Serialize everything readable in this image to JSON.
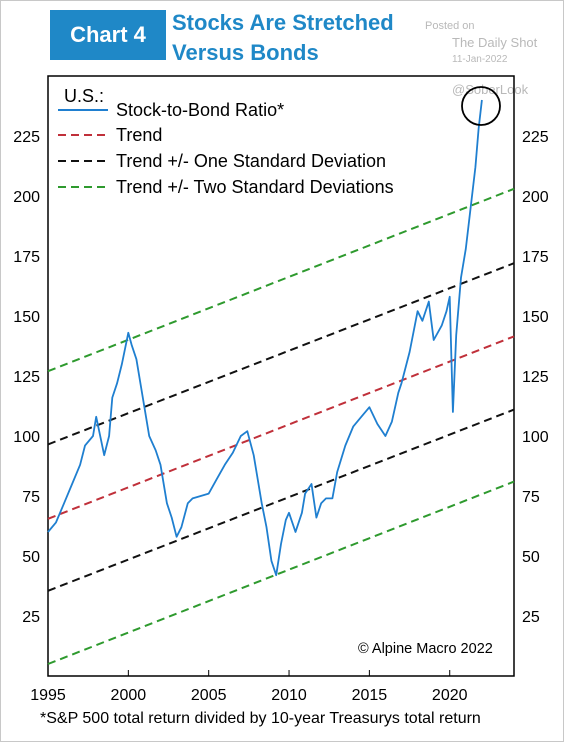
{
  "header": {
    "badge": "Chart 4",
    "title_line1": "Stocks Are Stretched",
    "title_line2": "Versus Bonds"
  },
  "watermark": {
    "posted_on": "Posted on",
    "source": "The Daily Shot",
    "date": "11-Jan-2022",
    "handle": "@SoberLook"
  },
  "footnote": "*S&P 500 total return divided by 10-year Treasurys total return",
  "chart_data": {
    "type": "line",
    "region_label": "U.S.:",
    "credit": "© Alpine Macro 2022",
    "xlim": [
      1995,
      2024
    ],
    "ylim": [
      0,
      250
    ],
    "x_ticks": [
      "1995",
      "2000",
      "2005",
      "2010",
      "2015",
      "2020"
    ],
    "y_ticks": [
      "25",
      "50",
      "75",
      "100",
      "125",
      "150",
      "175",
      "200",
      "225"
    ],
    "legend_position": "top-left",
    "series": [
      {
        "name": "Stock-to-Bond Ratio*",
        "color": "#1f7fd0",
        "style": "solid",
        "x": [
          1995,
          1995.5,
          1996,
          1996.5,
          1997,
          1997.3,
          1997.8,
          1998,
          1998.5,
          1998.8,
          1999,
          1999.3,
          1999.6,
          2000,
          2000.2,
          2000.5,
          2000.8,
          2001,
          2001.3,
          2001.7,
          2002,
          2002.4,
          2002.7,
          2003,
          2003.3,
          2003.7,
          2004,
          2004.5,
          2005,
          2005.5,
          2006,
          2006.5,
          2007,
          2007.4,
          2007.8,
          2008,
          2008.3,
          2008.6,
          2008.9,
          2009.2,
          2009.5,
          2009.8,
          2010,
          2010.4,
          2010.8,
          2011,
          2011.4,
          2011.7,
          2012,
          2012.3,
          2012.7,
          2013,
          2013.5,
          2014,
          2014.5,
          2015,
          2015.5,
          2016,
          2016.4,
          2016.8,
          2017,
          2017.5,
          2018,
          2018.3,
          2018.7,
          2019,
          2019.5,
          2019.8,
          2020,
          2020.2,
          2020.4,
          2020.7,
          2021,
          2021.3,
          2021.6,
          2021.8,
          2022
        ],
        "y": [
          60,
          64,
          72,
          80,
          88,
          96,
          100,
          108,
          92,
          100,
          116,
          122,
          130,
          143,
          138,
          132,
          120,
          112,
          100,
          94,
          88,
          72,
          66,
          58,
          62,
          72,
          74,
          75,
          76,
          82,
          88,
          93,
          100,
          102,
          92,
          84,
          72,
          62,
          48,
          42,
          55,
          65,
          68,
          60,
          68,
          76,
          80,
          66,
          72,
          74,
          74,
          85,
          96,
          104,
          108,
          112,
          105,
          100,
          106,
          118,
          122,
          135,
          152,
          148,
          156,
          140,
          146,
          152,
          158,
          110,
          142,
          166,
          178,
          195,
          212,
          228,
          240
        ]
      },
      {
        "name": "Trend",
        "color": "#c0303a",
        "style": "dashed",
        "x": [
          1995,
          2024
        ],
        "y": [
          65.5,
          141.5
        ]
      },
      {
        "name": "Trend +/- One Standard Deviation",
        "color": "#111111",
        "style": "dashed",
        "x": [
          1995,
          2024
        ],
        "y": [
          96.5,
          172
        ],
        "y_lower": [
          35.5,
          111
        ]
      },
      {
        "name": "Trend +/- Two Standard Deviations",
        "color": "#2e9a2e",
        "style": "dashed",
        "x": [
          1995,
          2024
        ],
        "y": [
          127,
          203
        ],
        "y_lower": [
          5,
          81
        ]
      }
    ]
  }
}
